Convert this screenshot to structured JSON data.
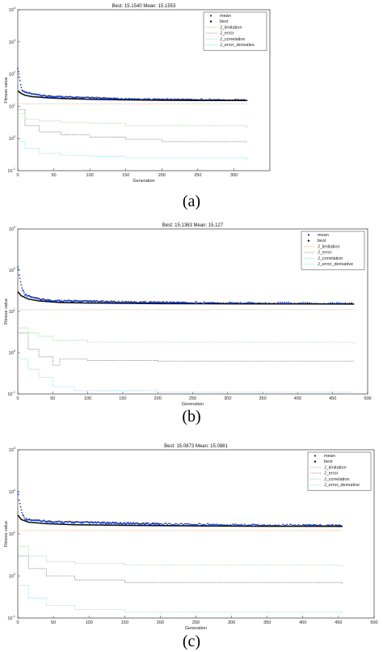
{
  "panels": [
    {
      "caption": "(a)"
    },
    {
      "caption": "(b)"
    },
    {
      "caption": "(c)"
    }
  ],
  "chart_data": [
    {
      "type": "scatter",
      "title": "Best: 15.1540 Mean: 15.1553",
      "xlabel": "Generation",
      "ylabel": "Fitness value",
      "xlim": [
        0,
        350
      ],
      "ylim_log10": [
        -1,
        4
      ],
      "yscale": "log",
      "xticks": [
        0,
        50,
        100,
        150,
        200,
        250,
        300
      ],
      "yticks": [
        -1,
        0,
        1,
        2,
        3,
        4
      ],
      "grid": false,
      "legend_position": "top-right",
      "legend": [
        "mean",
        "best",
        "J_limitation",
        "J_error",
        "J_correlation",
        "J_error_derivates"
      ],
      "series": [
        {
          "name": "mean",
          "color": "#1f3fbf",
          "points": [
            [
              0,
              150
            ],
            [
              2,
              80
            ],
            [
              4,
              45
            ],
            [
              6,
              30
            ],
            [
              8,
              28
            ],
            [
              10,
              27
            ],
            [
              15,
              25
            ],
            [
              20,
              23
            ],
            [
              25,
              22
            ],
            [
              30,
              21
            ],
            [
              40,
              20
            ],
            [
              50,
              19.5
            ],
            [
              60,
              19
            ],
            [
              80,
              18
            ],
            [
              100,
              17.5
            ],
            [
              120,
              17
            ],
            [
              150,
              16
            ],
            [
              200,
              15.6
            ],
            [
              250,
              15.4
            ],
            [
              318,
              15.16
            ]
          ]
        },
        {
          "name": "best",
          "color": "#111111",
          "points": [
            [
              0,
              30
            ],
            [
              5,
              25
            ],
            [
              10,
              22
            ],
            [
              20,
              20
            ],
            [
              40,
              18.5
            ],
            [
              60,
              17.5
            ],
            [
              100,
              16.5
            ],
            [
              150,
              15.8
            ],
            [
              200,
              15.4
            ],
            [
              250,
              15.2
            ],
            [
              318,
              15.15
            ]
          ]
        },
        {
          "name": "J_limitation",
          "color": "#e0a070",
          "points": [
            [
              0,
              12
            ],
            [
              50,
              12
            ],
            [
              100,
              12
            ],
            [
              318,
              12
            ]
          ]
        },
        {
          "name": "J_error",
          "color": "#777777",
          "points": [
            [
              0,
              8
            ],
            [
              10,
              2.5
            ],
            [
              30,
              1.6
            ],
            [
              60,
              1.3
            ],
            [
              100,
              1.1
            ],
            [
              150,
              0.95
            ],
            [
              200,
              0.8
            ],
            [
              318,
              0.75
            ]
          ]
        },
        {
          "name": "J_correlation",
          "color": "#8fd68f",
          "points": [
            [
              0,
              6
            ],
            [
              10,
              4
            ],
            [
              30,
              3.5
            ],
            [
              60,
              3.2
            ],
            [
              100,
              3
            ],
            [
              150,
              2.5
            ],
            [
              318,
              2.0
            ]
          ]
        },
        {
          "name": "J_error_derivates",
          "color": "#7fd6e8",
          "points": [
            [
              0,
              0.8
            ],
            [
              10,
              0.5
            ],
            [
              30,
              0.35
            ],
            [
              60,
              0.3
            ],
            [
              100,
              0.28
            ],
            [
              150,
              0.25
            ],
            [
              318,
              0.2
            ]
          ]
        }
      ]
    },
    {
      "type": "scatter",
      "title": "Best: 15.1363 Mean: 15.127",
      "xlabel": "Generation",
      "ylabel": "Fitness value",
      "xlim": [
        0,
        500
      ],
      "ylim_log10": [
        -1,
        3
      ],
      "yscale": "log",
      "xticks": [
        0,
        50,
        100,
        150,
        200,
        250,
        300,
        350,
        400,
        450,
        500
      ],
      "yticks": [
        -1,
        0,
        1,
        2,
        3
      ],
      "grid": false,
      "legend_position": "top-right",
      "legend": [
        "mean",
        "best",
        "J_limitation",
        "J_error",
        "J_correlation",
        "J_error_derivative"
      ],
      "series": [
        {
          "name": "mean",
          "color": "#1f3fbf",
          "points": [
            [
              0,
              120
            ],
            [
              3,
              60
            ],
            [
              6,
              35
            ],
            [
              10,
              25
            ],
            [
              20,
              21
            ],
            [
              30,
              19
            ],
            [
              50,
              17.5
            ],
            [
              80,
              17
            ],
            [
              120,
              16.5
            ],
            [
              160,
              16
            ],
            [
              200,
              15.8
            ],
            [
              240,
              15.6
            ],
            [
              300,
              15.4
            ],
            [
              360,
              15.2
            ],
            [
              480,
              15.13
            ]
          ]
        },
        {
          "name": "best",
          "color": "#111111",
          "points": [
            [
              0,
              30
            ],
            [
              5,
              24
            ],
            [
              15,
              20
            ],
            [
              30,
              18
            ],
            [
              60,
              16.5
            ],
            [
              100,
              16
            ],
            [
              200,
              15.5
            ],
            [
              300,
              15.3
            ],
            [
              480,
              15.14
            ]
          ]
        },
        {
          "name": "J_limitation",
          "color": "#e0a070",
          "points": [
            [
              0,
              11
            ],
            [
              100,
              11
            ],
            [
              480,
              11
            ]
          ]
        },
        {
          "name": "J_error",
          "color": "#777777",
          "points": [
            [
              0,
              3
            ],
            [
              15,
              1.2
            ],
            [
              30,
              0.8
            ],
            [
              50,
              0.5
            ],
            [
              60,
              0.7
            ],
            [
              100,
              0.65
            ],
            [
              200,
              0.62
            ],
            [
              480,
              0.6
            ]
          ]
        },
        {
          "name": "J_correlation",
          "color": "#8fd68f",
          "points": [
            [
              0,
              4
            ],
            [
              15,
              3
            ],
            [
              30,
              2.5
            ],
            [
              50,
              2
            ],
            [
              100,
              1.8
            ],
            [
              480,
              1.6
            ]
          ]
        },
        {
          "name": "J_error_derivative",
          "color": "#7fd6e8",
          "points": [
            [
              0,
              0.7
            ],
            [
              15,
              0.4
            ],
            [
              30,
              0.25
            ],
            [
              50,
              0.15
            ],
            [
              80,
              0.12
            ],
            [
              200,
              0.11
            ],
            [
              480,
              0.11
            ]
          ]
        }
      ]
    },
    {
      "type": "scatter",
      "title": "Best: 15.0873 Mean: 15.0881",
      "xlabel": "Generation",
      "ylabel": "Fitness value",
      "xlim": [
        0,
        500
      ],
      "ylim_log10": [
        -1,
        3
      ],
      "yscale": "log",
      "xticks": [
        0,
        50,
        100,
        150,
        200,
        250,
        300,
        350,
        400,
        450,
        500
      ],
      "yticks": [
        -1,
        0,
        1,
        2,
        3
      ],
      "grid": false,
      "legend_position": "top-right",
      "legend": [
        "mean",
        "best",
        "J_limitation",
        "J_error",
        "J_correlation",
        "J_error_derivative"
      ],
      "series": [
        {
          "name": "mean",
          "color": "#1f3fbf",
          "points": [
            [
              0,
              100
            ],
            [
              3,
              50
            ],
            [
              6,
              30
            ],
            [
              10,
              22
            ],
            [
              20,
              20
            ],
            [
              40,
              19
            ],
            [
              80,
              18
            ],
            [
              120,
              17.5
            ],
            [
              160,
              17
            ],
            [
              200,
              16.5
            ],
            [
              260,
              16
            ],
            [
              320,
              15.6
            ],
            [
              400,
              15.3
            ],
            [
              455,
              15.09
            ]
          ]
        },
        {
          "name": "best",
          "color": "#111111",
          "points": [
            [
              0,
              28
            ],
            [
              5,
              22
            ],
            [
              15,
              19
            ],
            [
              40,
              17.5
            ],
            [
              80,
              16.5
            ],
            [
              150,
              16
            ],
            [
              250,
              15.5
            ],
            [
              350,
              15.2
            ],
            [
              455,
              15.09
            ]
          ]
        },
        {
          "name": "J_limitation",
          "color": "#e0a070",
          "points": [
            [
              0,
              12
            ],
            [
              100,
              12
            ],
            [
              455,
              12
            ]
          ]
        },
        {
          "name": "J_error",
          "color": "#777777",
          "points": [
            [
              0,
              3
            ],
            [
              15,
              1.5
            ],
            [
              40,
              1.0
            ],
            [
              80,
              0.8
            ],
            [
              150,
              0.7
            ],
            [
              455,
              0.65
            ]
          ]
        },
        {
          "name": "J_correlation",
          "color": "#8fd68f",
          "points": [
            [
              0,
              5
            ],
            [
              15,
              3
            ],
            [
              40,
              2.2
            ],
            [
              80,
              2
            ],
            [
              150,
              1.8
            ],
            [
              455,
              1.6
            ]
          ]
        },
        {
          "name": "J_error_derivative",
          "color": "#7fd6e8",
          "points": [
            [
              0,
              0.6
            ],
            [
              15,
              0.3
            ],
            [
              40,
              0.2
            ],
            [
              80,
              0.16
            ],
            [
              150,
              0.14
            ],
            [
              455,
              0.13
            ]
          ]
        }
      ]
    }
  ]
}
